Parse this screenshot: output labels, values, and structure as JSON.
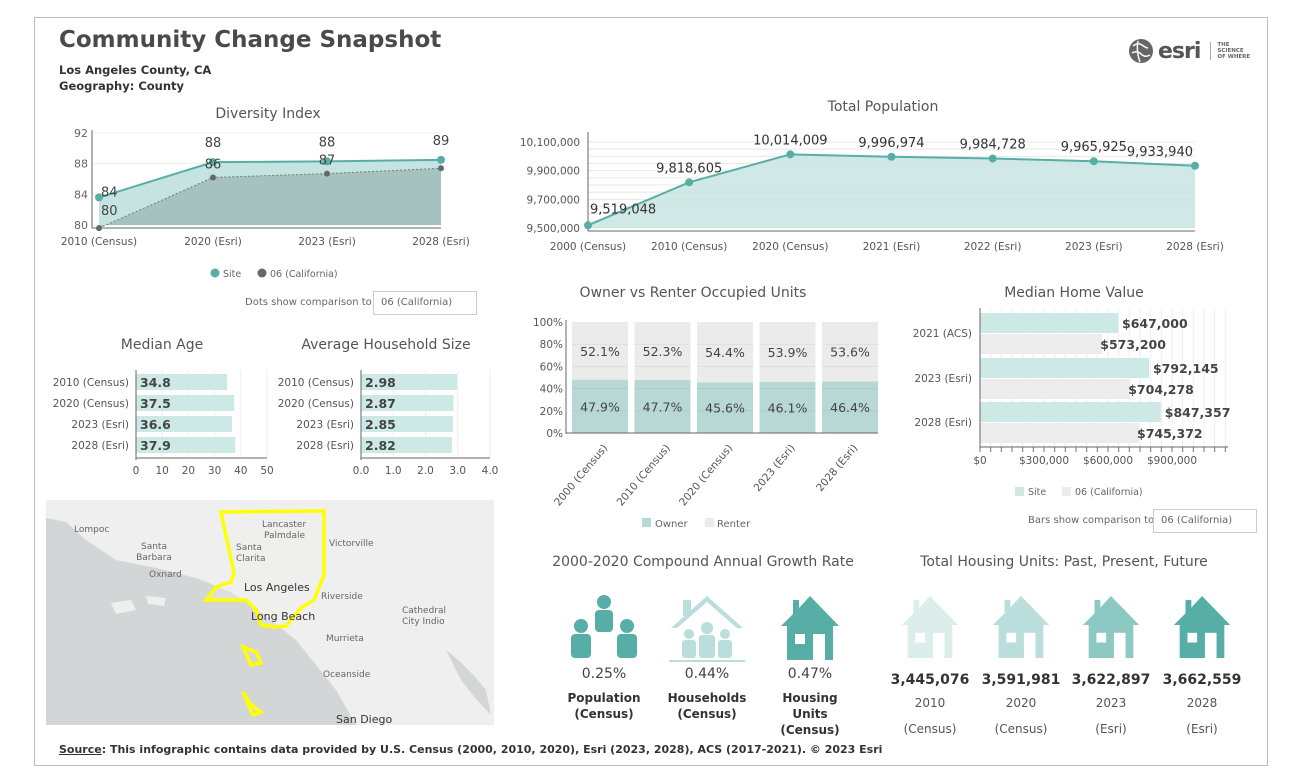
{
  "header": {
    "title": "Community Change Snapshot",
    "location": "Los Angeles County, CA",
    "geography": "Geography: County",
    "logo_text": "esri",
    "logo_tagline": "THE SCIENCE OF WHERE"
  },
  "colors": {
    "site": "#56aea6",
    "site_fill": "#c5e3e0",
    "compare": "#5f6b6a",
    "compare_fill": "#a6c2bf",
    "renter": "#ebebeb",
    "owner": "#b8d8d5",
    "bar_site": "#cde9e6",
    "bar_compare": "#ececec"
  },
  "diversity": {
    "title": "Diversity Index",
    "legend": [
      "Site",
      "06 (California)"
    ],
    "comparison_label": "Dots show comparison to",
    "comparison_value": "06 (California)"
  },
  "population": {
    "title": "Total Population"
  },
  "median_age": {
    "title": "Median Age"
  },
  "hh_size": {
    "title": "Average Household Size"
  },
  "tenure": {
    "title": "Owner vs Renter Occupied Units",
    "legend": [
      "Owner",
      "Renter"
    ]
  },
  "home_value": {
    "title": "Median Home Value",
    "legend": [
      "Site",
      "06 (California)"
    ],
    "comparison_label": "Bars show comparison to",
    "comparison_value": "06 (California)"
  },
  "chart_data": [
    {
      "type": "line",
      "title": "Diversity Index",
      "categories": [
        "2010 (Census)",
        "2020 (Esri)",
        "2023 (Esri)",
        "2028 (Esri)"
      ],
      "ylim": [
        80,
        92
      ],
      "yticks": [
        80,
        84,
        88,
        92
      ],
      "series": [
        {
          "name": "Site",
          "values": [
            83.6,
            88.2,
            88.3,
            88.5
          ],
          "labels": [
            "84",
            "88",
            "88",
            "89"
          ]
        },
        {
          "name": "06 (California)",
          "values": [
            79.6,
            86.2,
            86.7,
            87.4
          ],
          "labels": [
            "80",
            "86",
            "87",
            ""
          ]
        }
      ]
    },
    {
      "type": "area",
      "title": "Total Population",
      "categories": [
        "2000 (Census)",
        "2010 (Census)",
        "2020 (Census)",
        "2021 (Esri)",
        "2022 (Esri)",
        "2023 (Esri)",
        "2028 (Esri)"
      ],
      "values": [
        9519048,
        9818605,
        10014009,
        9996974,
        9984728,
        9965925,
        9933940
      ],
      "labels": [
        "9,519,048",
        "9,818,605",
        "10,014,009",
        "9,996,974",
        "9,984,728",
        "9,965,925",
        "9,933,940"
      ],
      "ylim": [
        9500000,
        10100000
      ],
      "yticks": [
        "9,500,000",
        "9,700,000",
        "9,900,000",
        "10,100,000"
      ]
    },
    {
      "type": "bar",
      "title": "Median Age",
      "categories": [
        "2010 (Census)",
        "2020 (Census)",
        "2023 (Esri)",
        "2028 (Esri)"
      ],
      "values": [
        34.8,
        37.5,
        36.6,
        37.9
      ],
      "labels": [
        "34.8",
        "37.5",
        "36.6",
        "37.9"
      ],
      "xlim": [
        0,
        50
      ],
      "xticks": [
        "0",
        "10",
        "20",
        "30",
        "40",
        "50"
      ]
    },
    {
      "type": "bar",
      "title": "Average Household Size",
      "categories": [
        "2010 (Census)",
        "2020 (Census)",
        "2023 (Esri)",
        "2028 (Esri)"
      ],
      "values": [
        2.98,
        2.87,
        2.85,
        2.82
      ],
      "labels": [
        "2.98",
        "2.87",
        "2.85",
        "2.82"
      ],
      "xlim": [
        0,
        4
      ],
      "xticks": [
        "0.0",
        "1.0",
        "2.0",
        "3.0",
        "4.0"
      ]
    },
    {
      "type": "bar",
      "stacked": true,
      "title": "Owner vs Renter Occupied Units",
      "categories": [
        "2000 (Census)",
        "2010 (Census)",
        "2020 (Census)",
        "2023 (Esri)",
        "2028 (Esri)"
      ],
      "series": [
        {
          "name": "Owner",
          "values": [
            47.9,
            47.7,
            45.6,
            46.1,
            46.4
          ],
          "labels": [
            "47.9%",
            "47.7%",
            "45.6%",
            "46.1%",
            "46.4%"
          ]
        },
        {
          "name": "Renter",
          "values": [
            52.1,
            52.3,
            54.4,
            53.9,
            53.6
          ],
          "labels": [
            "52.1%",
            "52.3%",
            "54.4%",
            "53.9%",
            "53.6%"
          ]
        }
      ],
      "yticks": [
        "0%",
        "20%",
        "40%",
        "60%",
        "80%",
        "100%"
      ]
    },
    {
      "type": "bar",
      "title": "Median Home Value",
      "categories": [
        "2021 (ACS)",
        "2023 (Esri)",
        "2028 (Esri)"
      ],
      "series": [
        {
          "name": "Site",
          "values": [
            647000,
            792145,
            847357
          ],
          "labels": [
            "$647,000",
            "$792,145",
            "$847,357"
          ]
        },
        {
          "name": "06 (California)",
          "values": [
            573200,
            704278,
            745372
          ],
          "labels": [
            "$573,200",
            "$704,278",
            "$745,372"
          ]
        }
      ],
      "xticks": [
        "$0",
        "$300,000",
        "$600,000",
        "$900,000"
      ],
      "xlim": [
        0,
        1150000
      ]
    }
  ],
  "map": {
    "labels": [
      "Lompoc",
      "Santa Barbara",
      "Oxnard",
      "Santa Clarita",
      "Lancaster",
      "Palmdale",
      "Victorville",
      "Los Angeles",
      "Riverside",
      "Long Beach",
      "Cathedral",
      "City Indio",
      "Murrieta",
      "Oceanside",
      "San Diego"
    ]
  },
  "cagr": {
    "title": "2000-2020 Compound Annual Growth Rate",
    "items": [
      {
        "value": "0.25%",
        "label": "Population (Census)",
        "icon": "people-icon"
      },
      {
        "value": "0.44%",
        "label": "Households (Census)",
        "icon": "household-icon"
      },
      {
        "value": "0.47%",
        "label": "Housing Units (Census)",
        "icon": "house-icon"
      }
    ]
  },
  "housing": {
    "title": "Total Housing Units: Past, Present, Future",
    "items": [
      {
        "value": "3,445,076",
        "year": "2010",
        "source": "(Census)",
        "color": "#dbeeec"
      },
      {
        "value": "3,591,981",
        "year": "2020",
        "source": "(Census)",
        "color": "#b9dedb"
      },
      {
        "value": "3,622,897",
        "year": "2023",
        "source": "(Esri)",
        "color": "#8cc9c3"
      },
      {
        "value": "3,662,559",
        "year": "2028",
        "source": "(Esri)",
        "color": "#56aea6"
      }
    ]
  },
  "source": {
    "label": "Source",
    "text": ": This infographic contains data provided by U.S. Census (2000, 2010, 2020), Esri (2023, 2028), ACS (2017-2021).  © 2023 Esri"
  }
}
